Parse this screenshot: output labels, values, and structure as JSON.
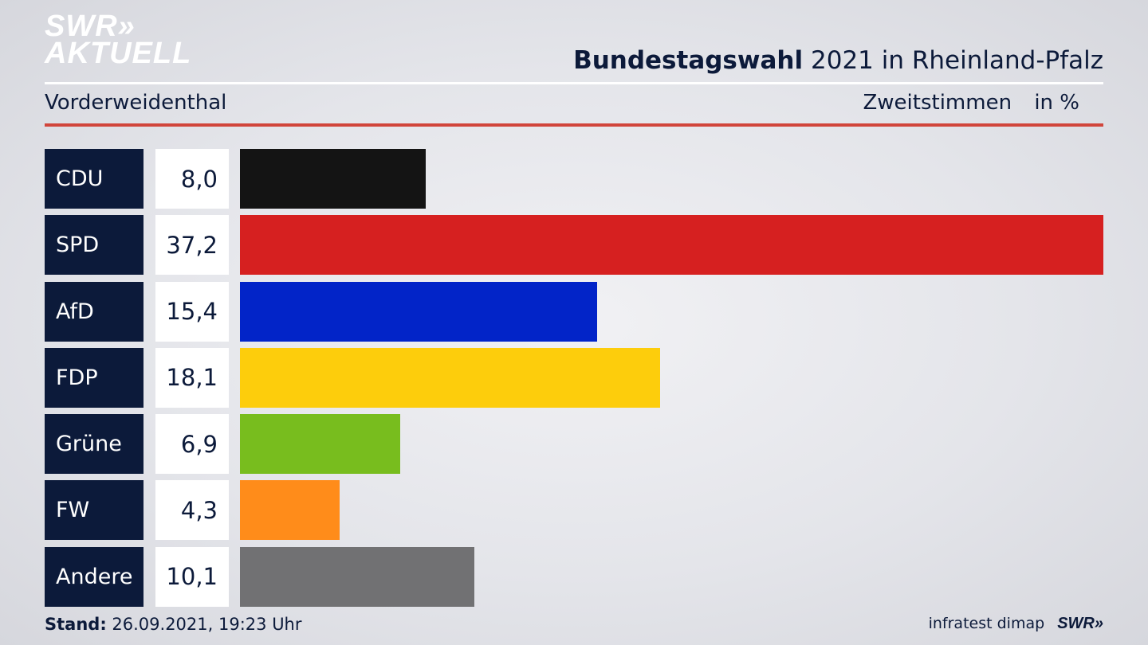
{
  "header": {
    "logo_line1": "SWR»",
    "logo_line2": "AKTUELL",
    "title_bold": "Bundestagswahl",
    "title_rest": "2021 in Rheinland-Pfalz",
    "subtitle": "Vorderweidenthal",
    "measure": "Zweitstimmen",
    "unit": "in %"
  },
  "footer": {
    "stand_label": "Stand:",
    "stand_value": "26.09.2021, 19:23 Uhr",
    "source": "infratest dimap",
    "brand": "SWR»"
  },
  "chart_data": {
    "type": "bar",
    "orientation": "horizontal",
    "categories": [
      "CDU",
      "SPD",
      "AfD",
      "FDP",
      "Grüne",
      "FW",
      "Andere"
    ],
    "values": [
      8.0,
      37.2,
      15.4,
      18.1,
      6.9,
      4.3,
      10.1
    ],
    "value_labels": [
      "8,0",
      "37,2",
      "15,4",
      "18,1",
      "6,9",
      "4,3",
      "10,1"
    ],
    "colors": [
      "#141414",
      "#d62020",
      "#0224c8",
      "#fdcd0c",
      "#78bd1e",
      "#ff8c1a",
      "#717173"
    ],
    "xlim": [
      0,
      37.2
    ]
  }
}
